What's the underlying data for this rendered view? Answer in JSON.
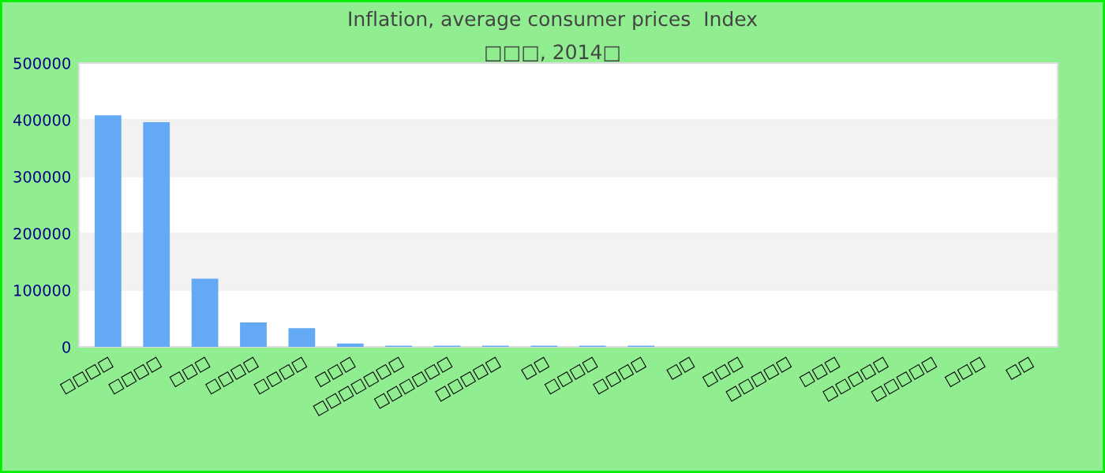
{
  "chart_data": {
    "type": "bar",
    "title": "Inflation, average consumer prices  Index",
    "subtitle": "□□□, 2014□",
    "categories": [
      "□□□□",
      "□□□□",
      "□□□",
      "□□□□",
      "□□□□",
      "□□□",
      "□□□□□□□",
      "□□□□□□",
      "□□□□□",
      "□□",
      "□□□□",
      "□□□□",
      "□□",
      "□□□",
      "□□□□□",
      "□□□",
      "□□□□□",
      "□□□□□",
      "□□□",
      "□□"
    ],
    "values": [
      408000,
      396000,
      120000,
      43000,
      33000,
      6000,
      2000,
      2000,
      2000,
      2000,
      2000,
      2000,
      null,
      null,
      null,
      null,
      null,
      null,
      null,
      null
    ],
    "color": "#63a9f4",
    "ylim": [
      0,
      500000
    ],
    "yticks": [
      0,
      100000,
      200000,
      300000,
      400000,
      500000
    ],
    "grid": "y"
  }
}
